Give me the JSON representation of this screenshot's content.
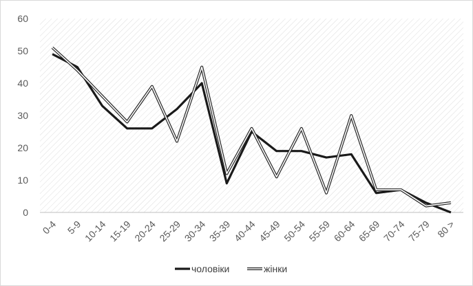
{
  "chart_data": {
    "type": "line",
    "title": "",
    "xlabel": "",
    "ylabel": "",
    "ylim": [
      0,
      60
    ],
    "yticks": [
      0,
      10,
      20,
      30,
      40,
      50,
      60
    ],
    "grid": false,
    "plot_background": "diagonal-hatch",
    "legend_position": "bottom",
    "categories": [
      "0-4",
      "5-9",
      "10-14",
      "15-19",
      "20-24",
      "25-29",
      "30-34",
      "35-39",
      "40-44",
      "45-49",
      "50-54",
      "55-59",
      "60-64",
      "65-69",
      "70-74",
      "75-79",
      "80 >"
    ],
    "series": [
      {
        "name": "чоловіки",
        "style": "thick-solid",
        "color": "#1a1a1a",
        "values": [
          49,
          45,
          33,
          26,
          26,
          32,
          40,
          9,
          25,
          19,
          19,
          17,
          18,
          6,
          7,
          3,
          0
        ]
      },
      {
        "name": "жінки",
        "style": "double-outline",
        "color": "#262626",
        "values": [
          51,
          44,
          36,
          28,
          39,
          22,
          45,
          12,
          26,
          11,
          26,
          6,
          30,
          7,
          7,
          2,
          3
        ]
      }
    ]
  }
}
